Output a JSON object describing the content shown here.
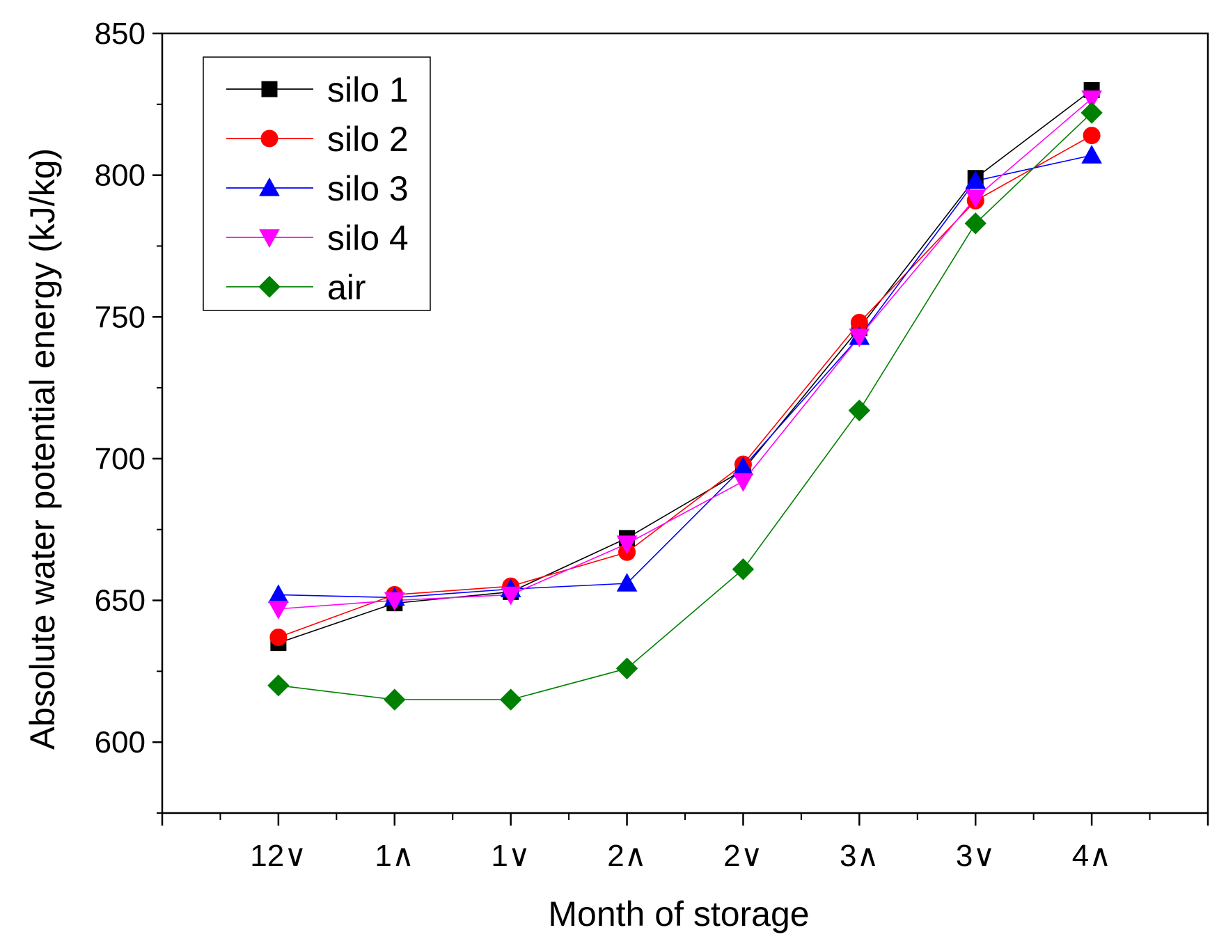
{
  "chart_data": {
    "type": "line",
    "title": "",
    "xlabel": "Month of storage",
    "ylabel": "Absolute water potential energy (kJ/kg)",
    "categories": [
      "12∨",
      "1∧",
      "1∨",
      "2∧",
      "2∨",
      "3∧",
      "3∨",
      "4∧"
    ],
    "x_range": [
      -1,
      8
    ],
    "ylim": [
      575,
      850
    ],
    "y_ticks": [
      600,
      650,
      700,
      750,
      800,
      850
    ],
    "grid": false,
    "legend_position": "top-left",
    "series": [
      {
        "name": "silo 1",
        "color": "#000000",
        "marker": "square",
        "values": [
          635,
          649,
          653,
          672,
          696,
          746,
          799,
          830
        ]
      },
      {
        "name": "silo 2",
        "color": "#ff0000",
        "marker": "circle",
        "values": [
          637,
          652,
          655,
          667,
          698,
          748,
          791,
          814
        ]
      },
      {
        "name": "silo 3",
        "color": "#0000ff",
        "marker": "triangle-up",
        "values": [
          652,
          651,
          654,
          656,
          697,
          743,
          798,
          807
        ]
      },
      {
        "name": "silo 4",
        "color": "#ff00ff",
        "marker": "triangle-down",
        "values": [
          647,
          650,
          652,
          670,
          692,
          743,
          792,
          827
        ]
      },
      {
        "name": "air",
        "color": "#008000",
        "marker": "diamond",
        "values": [
          620,
          615,
          615,
          626,
          661,
          717,
          783,
          822
        ]
      }
    ]
  }
}
